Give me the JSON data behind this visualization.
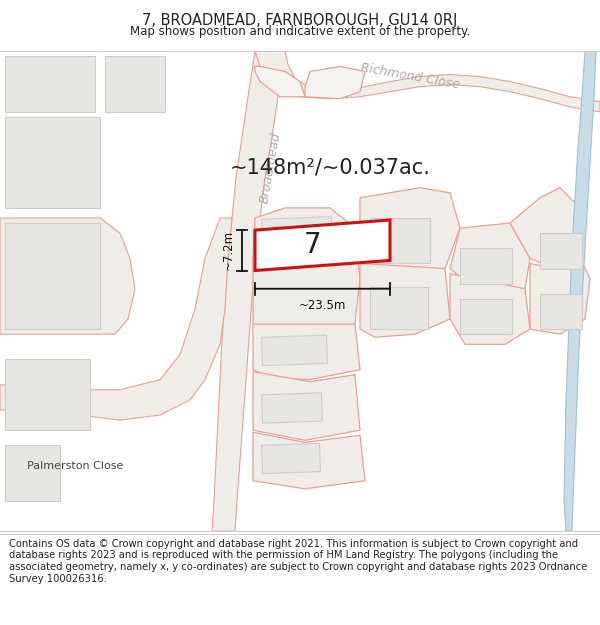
{
  "title": "7, BROADMEAD, FARNBOROUGH, GU14 0RJ",
  "subtitle": "Map shows position and indicative extent of the property.",
  "area_text": "~148m²/~0.037ac.",
  "property_number": "7",
  "dim_width": "~23.5m",
  "dim_height": "~7.2m",
  "footer_text": "Contains OS data © Crown copyright and database right 2021. This information is subject to Crown copyright and database rights 2023 and is reproduced with the permission of HM Land Registry. The polygons (including the associated geometry, namely x, y co-ordinates) are subject to Crown copyright and database rights 2023 Ordnance Survey 100026316.",
  "bg_color": "#ffffff",
  "map_bg": "#f8f6f4",
  "plot_outline": "#e8a090",
  "building_fill": "#e8e6e2",
  "building_edge": "#d0cdc8",
  "property_fill": "#ffffff",
  "property_edge": "#cc1111",
  "text_color": "#222222",
  "dim_color": "#111111",
  "road_label_color": "#aaaaaa",
  "water_color": "#cce8f0",
  "footer_bg": "#ffffff",
  "title_fontsize": 10.5,
  "subtitle_fontsize": 8.5,
  "area_fontsize": 15,
  "property_num_fontsize": 20,
  "dim_fontsize": 8.5,
  "footer_fontsize": 7.2,
  "road_label_fontsize": 9
}
